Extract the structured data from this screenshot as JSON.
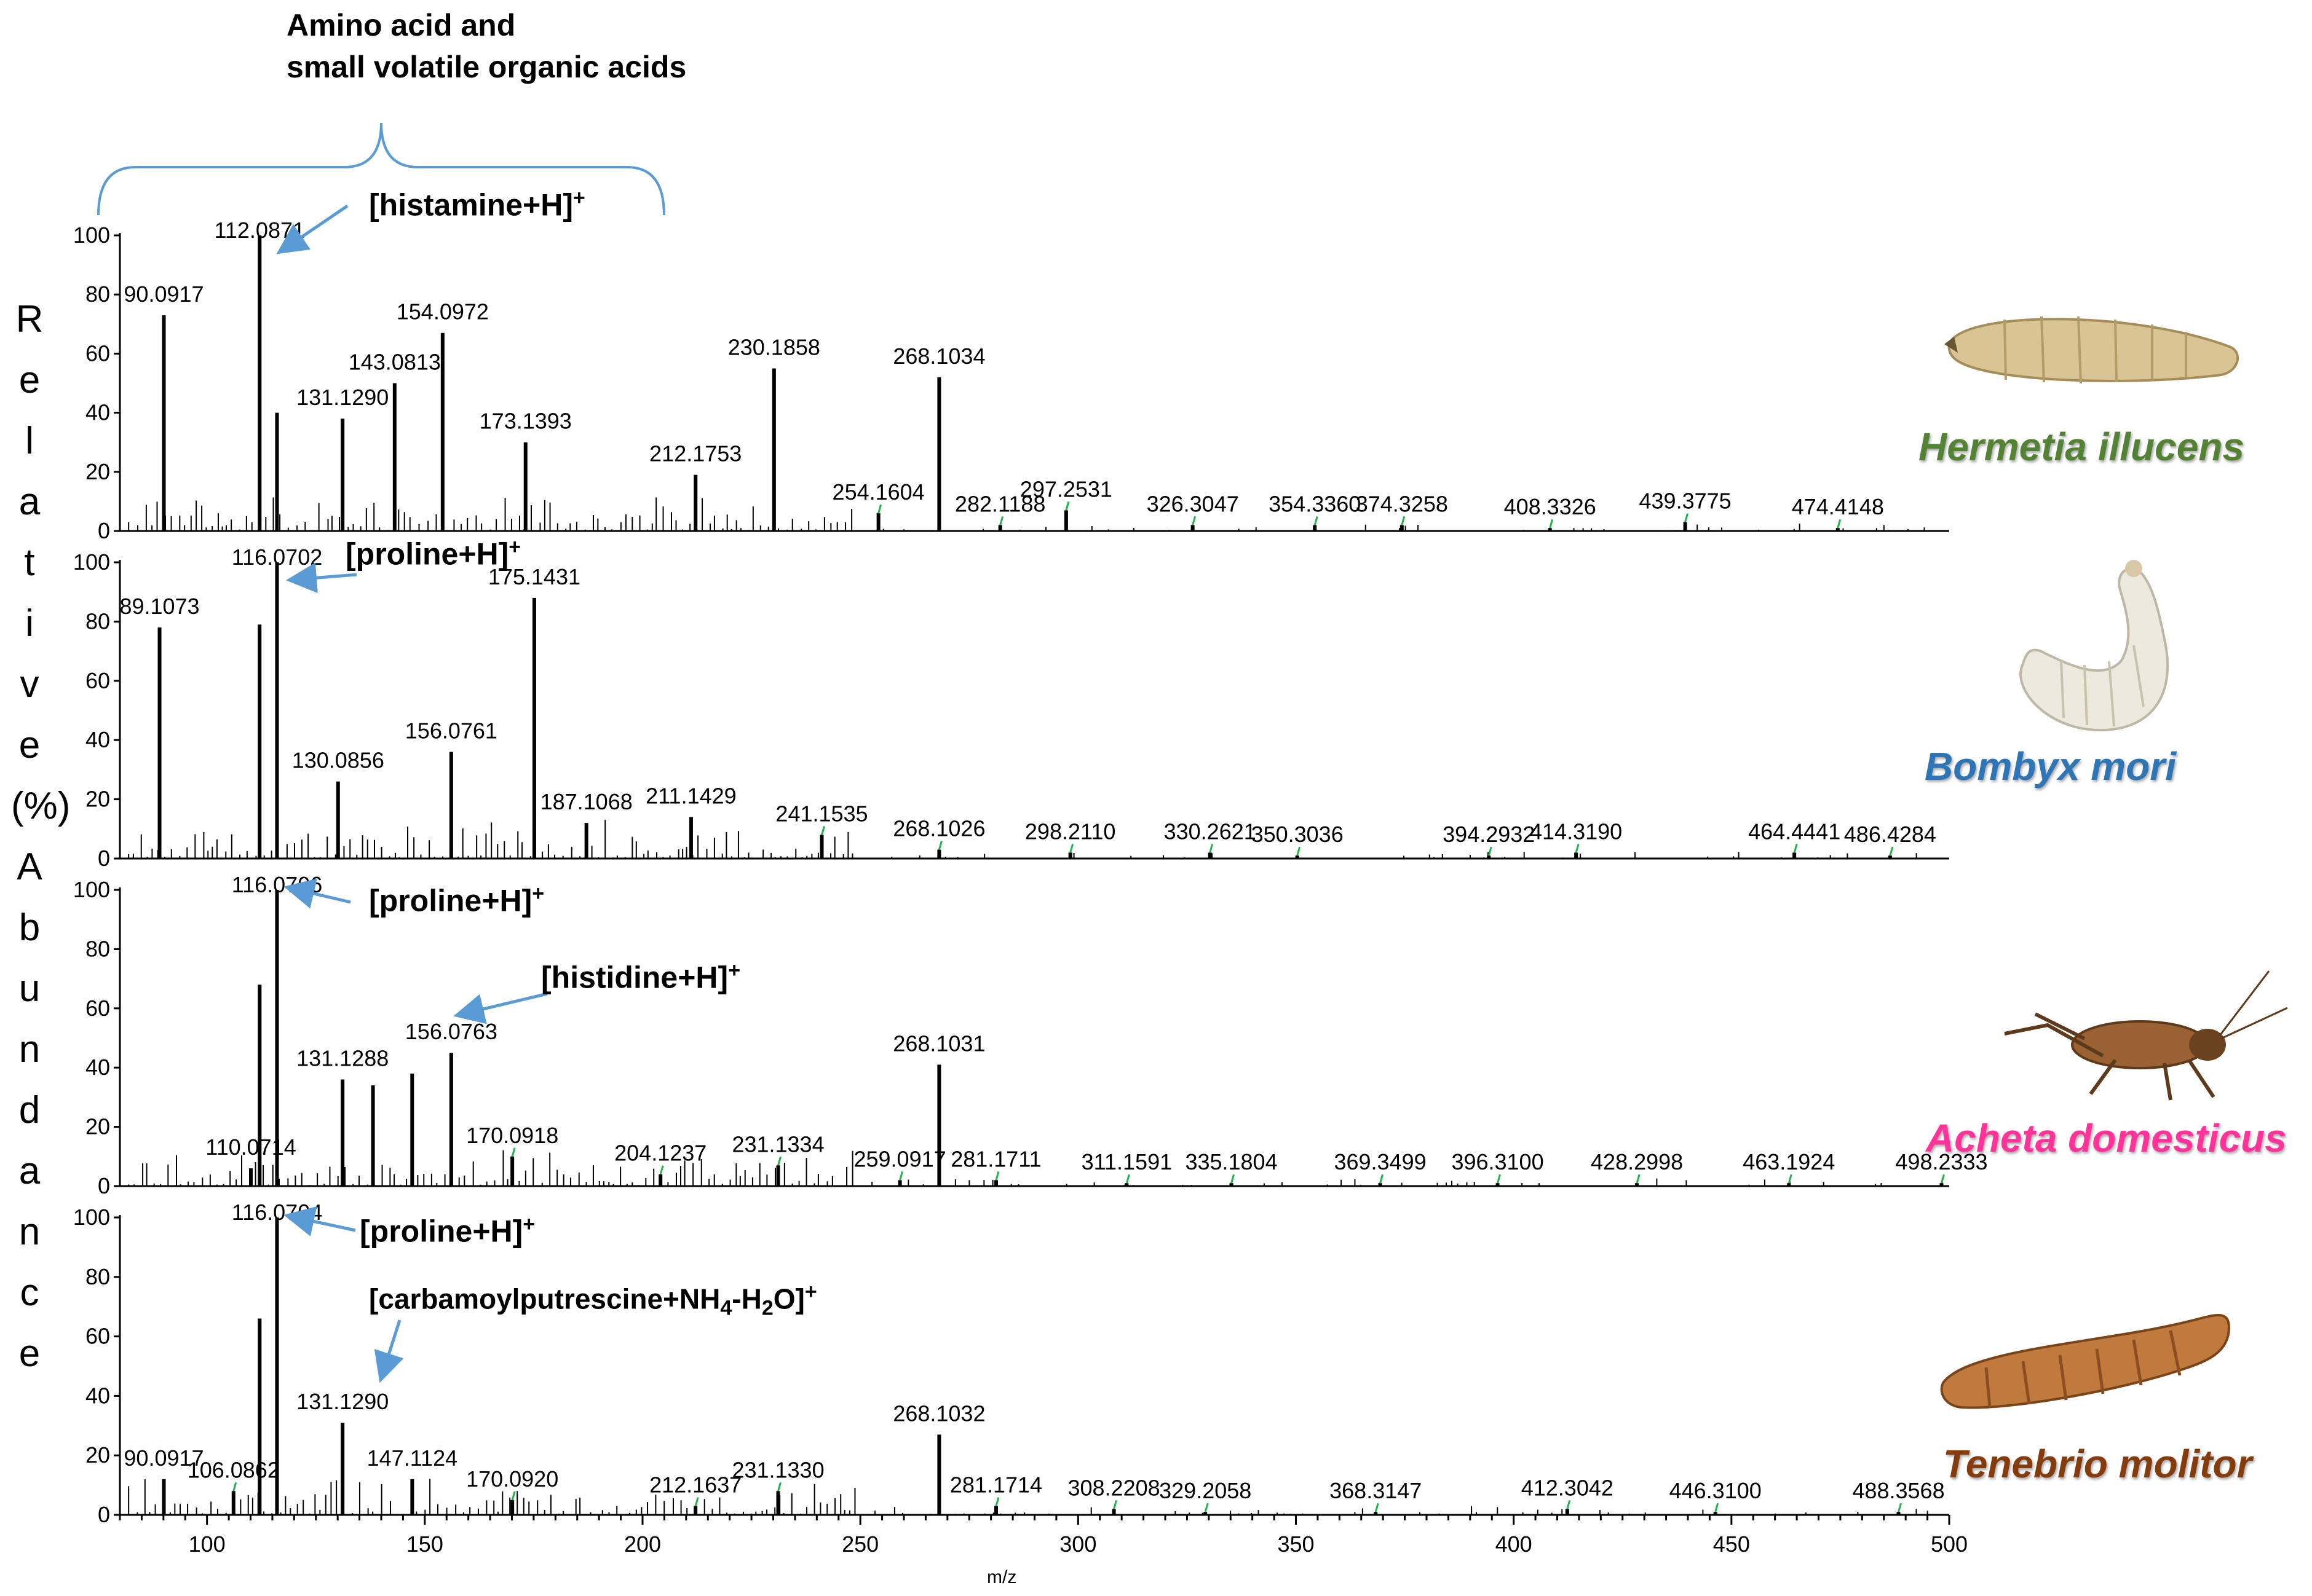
{
  "figure": {
    "top_annotation_line1": "Amino acid and",
    "top_annotation_line2": "small volatile organic acids",
    "y_axis_label": "Relative Abundance (%)",
    "y_axis_letters": [
      "R",
      "e",
      "l",
      "a",
      "t",
      "i",
      "v",
      "e",
      "(%)",
      "A",
      "b",
      "u",
      "n",
      "d",
      "a",
      "n",
      "c",
      "e"
    ],
    "x_axis_label": "m/z"
  },
  "annotations": [
    {
      "text_main": "[histamine+H]",
      "sup": "+"
    },
    {
      "text_main": "[proline+H]",
      "sup": "+"
    },
    {
      "text_main": "[proline+H]",
      "sup": "+"
    },
    {
      "text_main": "[histidine+H]",
      "sup": "+"
    },
    {
      "text_main": "[proline+H]",
      "sup": "+"
    },
    {
      "text_main": "[carbamoylputrescine+NH",
      "sub1": "4",
      "mid": "-H",
      "sub2": "2",
      "end": "O]",
      "sup": "+"
    }
  ],
  "species": [
    {
      "name": "Hermetia illucens",
      "color": "#548235"
    },
    {
      "name": "Bombyx mori",
      "color": "#2e75b6"
    },
    {
      "name": "Acheta domesticus",
      "color": "#ff3399"
    },
    {
      "name": "Tenebrio molitor",
      "color": "#843c0c"
    }
  ],
  "colors": {
    "spectrum": "#000000",
    "leader": "#22b14c",
    "arrow": "#5b9bd5",
    "bracket": "#5b9bd5"
  },
  "chart_data": [
    {
      "type": "bar",
      "title": "Hermetia illucens",
      "xlabel": "m/z",
      "ylabel": "Relative Abundance (%)",
      "xlim": [
        80,
        500
      ],
      "ylim": [
        0,
        100
      ],
      "yticks": [
        0,
        20,
        40,
        60,
        80,
        100
      ],
      "peaks": [
        {
          "x": 90.0917,
          "y": 73,
          "label": "90.0917"
        },
        {
          "x": 112.0871,
          "y": 100,
          "label": "112.0871"
        },
        {
          "x": 116.07,
          "y": 40
        },
        {
          "x": 131.129,
          "y": 38,
          "label": "131.1290"
        },
        {
          "x": 143.0813,
          "y": 50,
          "label": "143.0813"
        },
        {
          "x": 154.0972,
          "y": 67,
          "label": "154.0972"
        },
        {
          "x": 173.1393,
          "y": 30,
          "label": "173.1393"
        },
        {
          "x": 212.1753,
          "y": 19,
          "label": "212.1753"
        },
        {
          "x": 230.1858,
          "y": 55,
          "label": "230.1858"
        },
        {
          "x": 254.1604,
          "y": 6,
          "label": "254.1604"
        },
        {
          "x": 268.1034,
          "y": 52,
          "label": "268.1034"
        },
        {
          "x": 282.1188,
          "y": 2,
          "label": "282.1188"
        },
        {
          "x": 297.2531,
          "y": 7,
          "label": "297.2531"
        },
        {
          "x": 326.3047,
          "y": 2,
          "label": "326.3047"
        },
        {
          "x": 354.336,
          "y": 2,
          "label": "354.3360"
        },
        {
          "x": 374.3258,
          "y": 2,
          "label": "374.3258"
        },
        {
          "x": 408.3326,
          "y": 1,
          "label": "408.3326"
        },
        {
          "x": 439.3775,
          "y": 3,
          "label": "439.3775"
        },
        {
          "x": 474.4148,
          "y": 1,
          "label": "474.4148"
        }
      ]
    },
    {
      "type": "bar",
      "title": "Bombyx mori",
      "xlabel": "m/z",
      "ylabel": "Relative Abundance (%)",
      "xlim": [
        80,
        500
      ],
      "ylim": [
        0,
        100
      ],
      "yticks": [
        0,
        20,
        40,
        60,
        80,
        100
      ],
      "peaks": [
        {
          "x": 89.1073,
          "y": 78,
          "label": "89.1073"
        },
        {
          "x": 112.08,
          "y": 79
        },
        {
          "x": 116.0702,
          "y": 100,
          "label": "116.0702"
        },
        {
          "x": 130.0856,
          "y": 26,
          "label": "130.0856"
        },
        {
          "x": 156.0761,
          "y": 36,
          "label": "156.0761"
        },
        {
          "x": 175.1431,
          "y": 88,
          "label": "175.1431"
        },
        {
          "x": 187.1068,
          "y": 12,
          "label": "187.1068"
        },
        {
          "x": 211.1429,
          "y": 14,
          "label": "211.1429"
        },
        {
          "x": 241.1535,
          "y": 8,
          "label": "241.1535"
        },
        {
          "x": 268.1026,
          "y": 3,
          "label": "268.1026"
        },
        {
          "x": 298.211,
          "y": 2,
          "label": "298.2110"
        },
        {
          "x": 330.2621,
          "y": 2,
          "label": "330.2621"
        },
        {
          "x": 350.3036,
          "y": 1,
          "label": "350.3036"
        },
        {
          "x": 394.2932,
          "y": 1,
          "label": "394.2932"
        },
        {
          "x": 414.319,
          "y": 2,
          "label": "414.3190"
        },
        {
          "x": 464.4441,
          "y": 2,
          "label": "464.4441"
        },
        {
          "x": 486.4284,
          "y": 1,
          "label": "486.4284"
        }
      ]
    },
    {
      "type": "bar",
      "title": "Acheta domesticus",
      "xlabel": "m/z",
      "ylabel": "Relative Abundance (%)",
      "xlim": [
        80,
        500
      ],
      "ylim": [
        0,
        100
      ],
      "yticks": [
        0,
        20,
        40,
        60,
        80,
        100
      ],
      "peaks": [
        {
          "x": 110.0714,
          "y": 6,
          "label": "110.0714"
        },
        {
          "x": 112.09,
          "y": 68
        },
        {
          "x": 116.0706,
          "y": 100,
          "label": "116.0706"
        },
        {
          "x": 131.1288,
          "y": 36,
          "label": "131.1288"
        },
        {
          "x": 138.1,
          "y": 34
        },
        {
          "x": 147.1,
          "y": 38
        },
        {
          "x": 156.0763,
          "y": 45,
          "label": "156.0763"
        },
        {
          "x": 170.0918,
          "y": 10,
          "label": "170.0918"
        },
        {
          "x": 204.1237,
          "y": 4,
          "label": "204.1237"
        },
        {
          "x": 231.1334,
          "y": 7,
          "label": "231.1334"
        },
        {
          "x": 259.0917,
          "y": 2,
          "label": "259.0917"
        },
        {
          "x": 268.1031,
          "y": 41,
          "label": "268.1031"
        },
        {
          "x": 281.1711,
          "y": 2,
          "label": "281.1711"
        },
        {
          "x": 311.1591,
          "y": 1,
          "label": "311.1591"
        },
        {
          "x": 335.1804,
          "y": 1,
          "label": "335.1804"
        },
        {
          "x": 369.3499,
          "y": 1,
          "label": "369.3499"
        },
        {
          "x": 396.31,
          "y": 1,
          "label": "396.3100"
        },
        {
          "x": 428.2998,
          "y": 1,
          "label": "428.2998"
        },
        {
          "x": 463.1924,
          "y": 1,
          "label": "463.1924"
        },
        {
          "x": 498.2333,
          "y": 1,
          "label": "498.2333"
        }
      ]
    },
    {
      "type": "bar",
      "title": "Tenebrio molitor",
      "xlabel": "m/z",
      "ylabel": "Relative Abundance (%)",
      "xlim": [
        80,
        500
      ],
      "ylim": [
        0,
        100
      ],
      "yticks": [
        0,
        20,
        40,
        60,
        80,
        100
      ],
      "xticks": [
        100,
        150,
        200,
        250,
        300,
        350,
        400,
        450,
        500
      ],
      "peaks": [
        {
          "x": 90.0917,
          "y": 12,
          "label": "90.0917"
        },
        {
          "x": 106.0862,
          "y": 8,
          "label": "106.0862"
        },
        {
          "x": 112.09,
          "y": 66
        },
        {
          "x": 116.0704,
          "y": 100,
          "label": "116.0704"
        },
        {
          "x": 131.129,
          "y": 31,
          "label": "131.1290"
        },
        {
          "x": 147.1124,
          "y": 12,
          "label": "147.1124"
        },
        {
          "x": 170.092,
          "y": 5,
          "label": "170.0920"
        },
        {
          "x": 212.1637,
          "y": 3,
          "label": "212.1637"
        },
        {
          "x": 231.133,
          "y": 8,
          "label": "231.1330"
        },
        {
          "x": 268.1032,
          "y": 27,
          "label": "268.1032"
        },
        {
          "x": 281.1714,
          "y": 3,
          "label": "281.1714"
        },
        {
          "x": 308.2208,
          "y": 2,
          "label": "308.2208"
        },
        {
          "x": 329.2058,
          "y": 1,
          "label": "329.2058"
        },
        {
          "x": 368.3147,
          "y": 1,
          "label": "368.3147"
        },
        {
          "x": 412.3042,
          "y": 2,
          "label": "412.3042"
        },
        {
          "x": 446.31,
          "y": 1,
          "label": "446.3100"
        },
        {
          "x": 488.3568,
          "y": 1,
          "label": "488.3568"
        }
      ]
    }
  ]
}
